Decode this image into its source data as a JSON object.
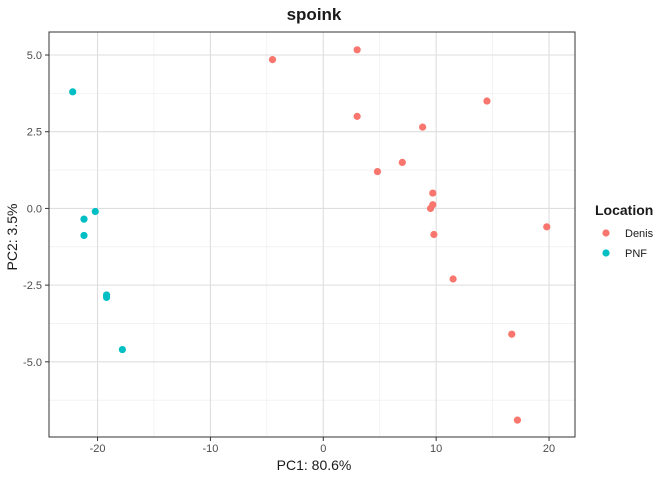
{
  "chart_data": {
    "type": "scatter",
    "title": "spoink",
    "xlabel": "PC1: 80.6%",
    "ylabel": "PC2: 3.5%",
    "xlim": [
      -24.3,
      22.3
    ],
    "ylim": [
      -7.45,
      5.75
    ],
    "x_ticks": [
      -20,
      -10,
      0,
      10,
      20
    ],
    "x_tick_labels": [
      "-20",
      "-10",
      "0",
      "10",
      "20"
    ],
    "y_ticks": [
      -5,
      -2.5,
      0,
      2.5,
      5
    ],
    "y_tick_labels": [
      "-5.0",
      "-2.5",
      "0.0",
      "2.5",
      "5.0"
    ],
    "grid": true,
    "legend": {
      "title": "Location",
      "position": "right"
    },
    "series": [
      {
        "name": "Denis",
        "color": "#F8766D",
        "points": [
          {
            "x": -4.5,
            "y": 4.85
          },
          {
            "x": 3.0,
            "y": 5.17
          },
          {
            "x": 3.0,
            "y": 3.0
          },
          {
            "x": 14.5,
            "y": 3.5
          },
          {
            "x": 8.8,
            "y": 2.65
          },
          {
            "x": 7.0,
            "y": 1.5
          },
          {
            "x": 4.8,
            "y": 1.2
          },
          {
            "x": 9.7,
            "y": 0.5
          },
          {
            "x": 9.7,
            "y": 0.12
          },
          {
            "x": 9.5,
            "y": 0.0
          },
          {
            "x": 9.8,
            "y": -0.85
          },
          {
            "x": 19.8,
            "y": -0.6
          },
          {
            "x": 11.5,
            "y": -2.3
          },
          {
            "x": 16.7,
            "y": -4.1
          },
          {
            "x": 17.2,
            "y": -6.9
          }
        ]
      },
      {
        "name": "PNF",
        "color": "#00BFC4",
        "points": [
          {
            "x": -22.2,
            "y": 3.8
          },
          {
            "x": -20.2,
            "y": -0.1
          },
          {
            "x": -21.2,
            "y": -0.35
          },
          {
            "x": -21.2,
            "y": -0.88
          },
          {
            "x": -19.2,
            "y": -2.82
          },
          {
            "x": -19.2,
            "y": -2.9
          },
          {
            "x": -17.8,
            "y": -4.6
          }
        ]
      }
    ]
  }
}
